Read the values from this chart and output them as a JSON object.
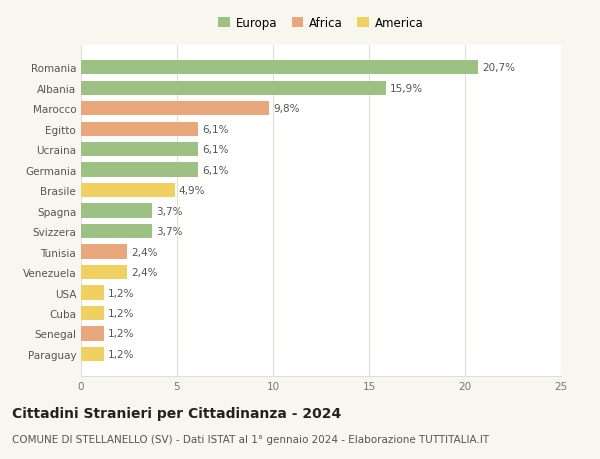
{
  "countries": [
    "Romania",
    "Albania",
    "Marocco",
    "Egitto",
    "Ucraina",
    "Germania",
    "Brasile",
    "Spagna",
    "Svizzera",
    "Tunisia",
    "Venezuela",
    "USA",
    "Cuba",
    "Senegal",
    "Paraguay"
  ],
  "values": [
    20.7,
    15.9,
    9.8,
    6.1,
    6.1,
    6.1,
    4.9,
    3.7,
    3.7,
    2.4,
    2.4,
    1.2,
    1.2,
    1.2,
    1.2
  ],
  "continents": [
    "Europa",
    "Europa",
    "Africa",
    "Africa",
    "Europa",
    "Europa",
    "America",
    "Europa",
    "Europa",
    "Africa",
    "America",
    "America",
    "America",
    "Africa",
    "America"
  ],
  "colors": {
    "Europa": "#9dc183",
    "Africa": "#e8a87c",
    "America": "#f0d060"
  },
  "legend_labels": [
    "Europa",
    "Africa",
    "America"
  ],
  "legend_colors": [
    "#9dc183",
    "#e8a87c",
    "#f0d060"
  ],
  "title": "Cittadini Stranieri per Cittadinanza - 2024",
  "subtitle": "COMUNE DI STELLANELLO (SV) - Dati ISTAT al 1° gennaio 2024 - Elaborazione TUTTITALIA.IT",
  "xlim": [
    0,
    25
  ],
  "xticks": [
    0,
    5,
    10,
    15,
    20,
    25
  ],
  "background_color": "#f7f7ef",
  "plot_background": "#ffffff",
  "grid_color": "#e0e0d0",
  "bar_height": 0.7,
  "label_fontsize": 7.5,
  "ytick_fontsize": 7.5,
  "xtick_fontsize": 7.5,
  "title_fontsize": 10,
  "subtitle_fontsize": 7.5,
  "legend_fontsize": 8.5
}
